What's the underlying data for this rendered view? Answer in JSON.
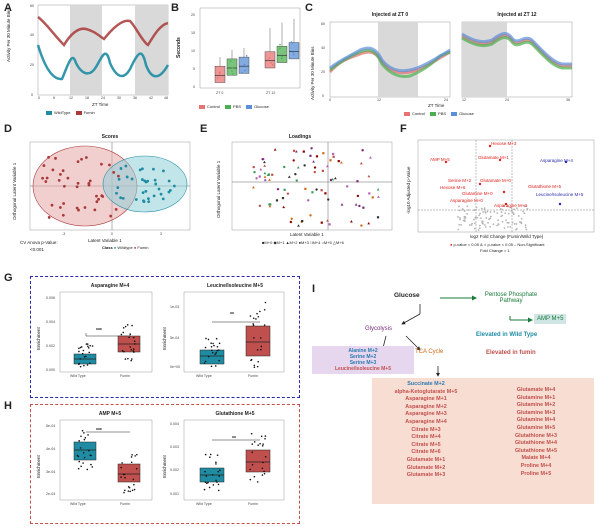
{
  "letters": {
    "A": "A",
    "B": "B",
    "C": "C",
    "D": "D",
    "E": "E",
    "F": "F",
    "G": "G",
    "H": "H",
    "I": "I"
  },
  "colors": {
    "wild": "#1f8ca3",
    "fumin": "#a83a3a",
    "control": "#e57373",
    "pbs": "#4caf50",
    "glucose": "#5b8fd6",
    "gray": "#d9d9d9",
    "navy": "#2a2aa8",
    "red": "#e0201c",
    "orange": "#d06a16",
    "purple": "#7a2a7a",
    "teal": "#3aa7a0"
  },
  "panelA": {
    "ylabel": "Activity Per 30 Minute Bins",
    "xlabel": "ZT Time",
    "xticks": [
      "0",
      "6",
      "12",
      "18",
      "24",
      "30",
      "36",
      "42",
      "48"
    ],
    "yticks": [
      "0",
      "20",
      "40",
      "60"
    ],
    "legend": [
      "WildType",
      "Fumin"
    ]
  },
  "panelB": {
    "ylabel": "Seconds",
    "xticks": [
      "ZT 0",
      "ZT 12"
    ],
    "yticks": [
      "0",
      "5",
      "10",
      "15",
      "20"
    ],
    "legend": [
      "Control",
      "PBS",
      "Glucose"
    ],
    "chart_data": {
      "type": "box",
      "categories": [
        "ZT 0",
        "ZT 12"
      ],
      "series": [
        {
          "name": "Control",
          "median": [
            3.5,
            7.5
          ]
        },
        {
          "name": "PBS",
          "median": [
            5.5,
            9
          ]
        },
        {
          "name": "Glucose",
          "median": [
            6,
            10
          ]
        }
      ],
      "ylim": [
        0,
        22
      ]
    }
  },
  "panelC": {
    "title_left": "Injected at ZT 0",
    "title_right": "Injected at ZT 12",
    "ylabel": "Activity Per 30 Minute Bins",
    "xlabel": "ZT Time",
    "xticks_left": [
      "0",
      "12",
      "24"
    ],
    "xticks_right": [
      "12",
      "24",
      "36"
    ],
    "yticks": [
      "0",
      "20",
      "40",
      "60"
    ],
    "legend": [
      "Control",
      "PBS",
      "Glucose"
    ]
  },
  "panelD": {
    "title": "Scores",
    "xlabel": "Latent Variable 1",
    "ylabel": "Orthogonal Latent Variable 1",
    "note1": "CV Anova p-Value:",
    "note2": "<0.001",
    "legend_title": "Class",
    "legend": [
      "Wildtype",
      "Fumin"
    ],
    "xticks": [
      "-3",
      "0",
      "3"
    ]
  },
  "panelE": {
    "title": "Loadings",
    "xlabel": "Latent Variable 1",
    "ylabel": "Orthogonal Latent Variable 1",
    "legend": [
      "M+0",
      "M+1",
      "M+2",
      "M+3",
      "M+4",
      "M+5",
      "M+6"
    ]
  },
  "panelF": {
    "xlabel": "log2 Fold Change (Fumin/Wild Type)",
    "ylabel": "-log10 Adjusted p-Value",
    "legend1": "p-value < 0.05 &",
    "legend2": "p-value < 0.05 – Non-Significant",
    "legend3": "Fold Change > 1",
    "labels": [
      {
        "t": "Hexose M+3",
        "c": "red"
      },
      {
        "t": "AMP M+5",
        "c": "red"
      },
      {
        "t": "Glutamate M+1",
        "c": "red"
      },
      {
        "t": "Asparagine M+4",
        "c": "navy"
      },
      {
        "t": "Serine M+2",
        "c": "red"
      },
      {
        "t": "Glutamate M+0",
        "c": "red"
      },
      {
        "t": "Hexose M+6",
        "c": "red"
      },
      {
        "t": "Glutamine M+0",
        "c": "red"
      },
      {
        "t": "Asparagine M+0",
        "c": "red"
      },
      {
        "t": "Glutathione M+5",
        "c": "red"
      },
      {
        "t": "Leucine/Isoleucine M+5",
        "c": "navy"
      },
      {
        "t": "Asparagine M+3",
        "c": "red"
      }
    ]
  },
  "panelG": {
    "plots": [
      {
        "title": "Asparagine M+4",
        "ylabel": "Enrichment",
        "yticks": [
          "0.000",
          "0.002",
          "0.004",
          "0.006"
        ],
        "sig": "***",
        "cats": [
          "Wild Type",
          "Fumin"
        ]
      },
      {
        "title": "Leucine/Isoleucine M+5",
        "ylabel": "Enrichment",
        "yticks": [
          "0e+00",
          "5e-04",
          "1e-03"
        ],
        "sig": "**",
        "cats": [
          "Wild Type",
          "Fumin"
        ]
      }
    ]
  },
  "panelH": {
    "plots": [
      {
        "title": "AMP M+5",
        "ylabel": "Enrichment",
        "yticks": [
          "2e-04",
          "3e-04",
          "4e-04",
          "5e-04"
        ],
        "sig": "***",
        "cats": [
          "Wild Type",
          "Fumin"
        ]
      },
      {
        "title": "Glutathione M+5",
        "ylabel": "Enrichment",
        "yticks": [
          "0.001",
          "0.002",
          "0.003",
          "0.004"
        ],
        "sig": "**",
        "cats": [
          "Wild Type",
          "Fumin"
        ]
      }
    ]
  },
  "panelI": {
    "glucose": "Glucose",
    "ppp": "Pentose Phosphate Pathway",
    "amp": "AMP M+5",
    "glycolysis": "Glycolysis",
    "tca": "TCA Cycle",
    "elevated_wild": "Elevated in Wild Type",
    "elevated_fumin": "Elevated in fumin",
    "glyco_list": [
      "Alanine M+2",
      "Serine M+2",
      "Serine M+3",
      "Leucine/Isoleucine M+5"
    ],
    "tca_left": [
      "Succinate M+2",
      "alpha-Ketoglutarate M+5",
      "Asparagine M+1",
      "Asparagine M+2",
      "Asparagine M+3",
      "Asparagine M+4",
      "Citrate M+3",
      "Citrate M+4",
      "Citrate M+5",
      "Citrate M+6",
      "Glutamate M+1",
      "Glutamate M+2",
      "Glutamate M+3"
    ],
    "tca_right": [
      "Glutamate M+4",
      "Glutamine M+1",
      "Glutamine M+2",
      "Glutamine M+3",
      "Glutamine M+4",
      "Glutamine M+5",
      "Glutathione M+3",
      "Glutathione M+4",
      "Glutathione M+5",
      "Malate M+4",
      "Proline M+4",
      "Proline M+5"
    ]
  }
}
